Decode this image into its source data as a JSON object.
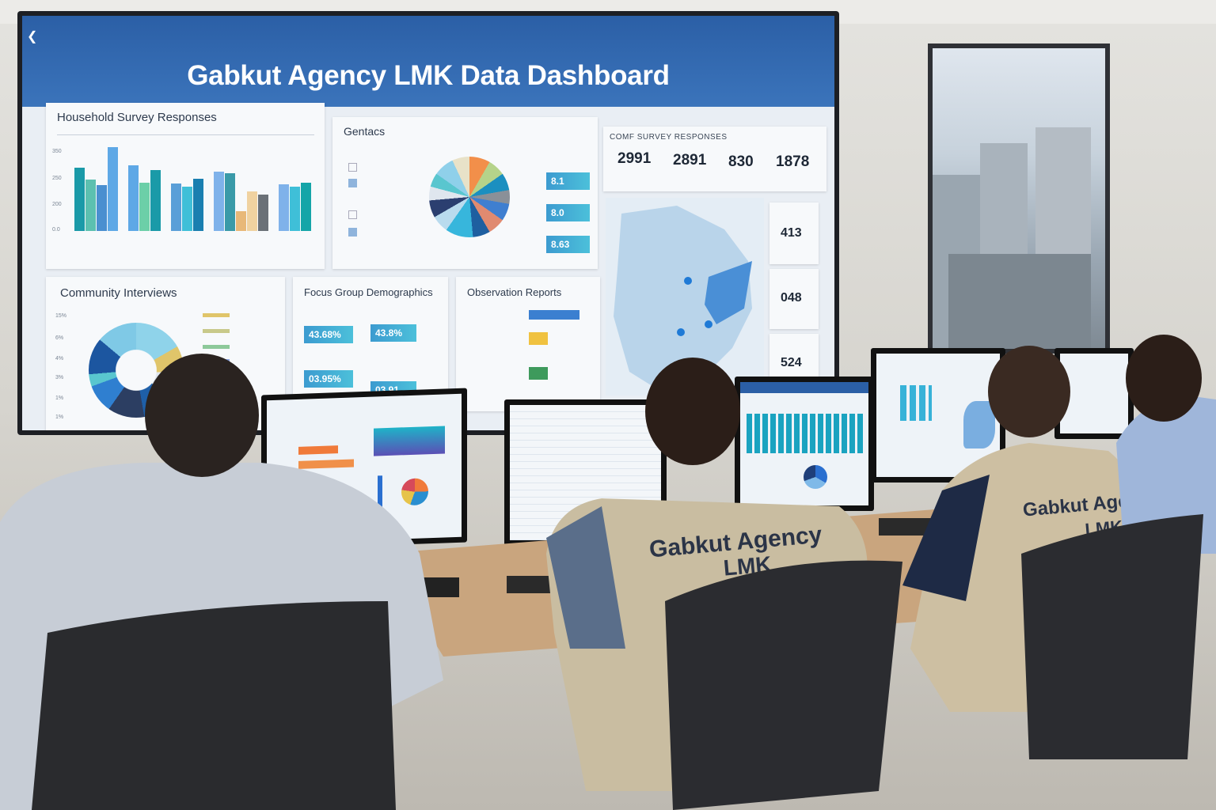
{
  "dashboard": {
    "title": "Gabkut Agency LMK Data Dashboard",
    "back_icon": "chevron-left-icon",
    "household": {
      "title": "Household Survey Responses",
      "y_ticks": [
        "350",
        "250",
        "200",
        "0.0"
      ],
      "groups": [
        {
          "values": [
            265,
            215,
            192,
            350
          ],
          "colors": [
            "#1a9aa8",
            "#5cc0b0",
            "#4a8fd0",
            "#5ea8e6"
          ]
        },
        {
          "values": [
            275,
            200,
            255
          ],
          "colors": [
            "#5ea8e6",
            "#6ccfa8",
            "#1a9aa8"
          ]
        },
        {
          "values": [
            198,
            185,
            218
          ],
          "colors": [
            "#5a9fd8",
            "#3fbfd8",
            "#1a7fb0"
          ]
        },
        {
          "values": [
            248,
            240,
            82,
            165,
            153
          ],
          "colors": [
            "#7fb2ea",
            "#3a9aa8",
            "#e8b878",
            "#f0d2a0",
            "#6b7177"
          ]
        },
        {
          "values": [
            195,
            185,
            202
          ],
          "colors": [
            "#7fb2ea",
            "#3fbfd8",
            "#14a5a8"
          ]
        }
      ]
    },
    "gentacs": {
      "title": "Gentacs",
      "kpis": [
        "8.1",
        "8.0",
        "8.63"
      ]
    },
    "stats": {
      "title": "Comf Survey Responses",
      "values": [
        "2991",
        "2891",
        "830",
        "1878"
      ],
      "side": [
        "413",
        "048",
        "524"
      ]
    },
    "community": {
      "title": "Community Interviews",
      "y_ticks": [
        "15%",
        "6%",
        "4%",
        "3%",
        "1%",
        "1%"
      ]
    },
    "focus": {
      "title": "Focus Group Demographics",
      "kpis": [
        "43.68%",
        "43.8%",
        "03.95%",
        "03.91"
      ]
    },
    "observation": {
      "title": "Observation Reports"
    }
  },
  "people": {
    "vest_text_line1": "Gabkut Agency",
    "vest_text_line2": "LMK"
  },
  "colors": {
    "header": "#2b5fa6",
    "vest": "#cfc3a8",
    "desk": "#c9a57e"
  }
}
